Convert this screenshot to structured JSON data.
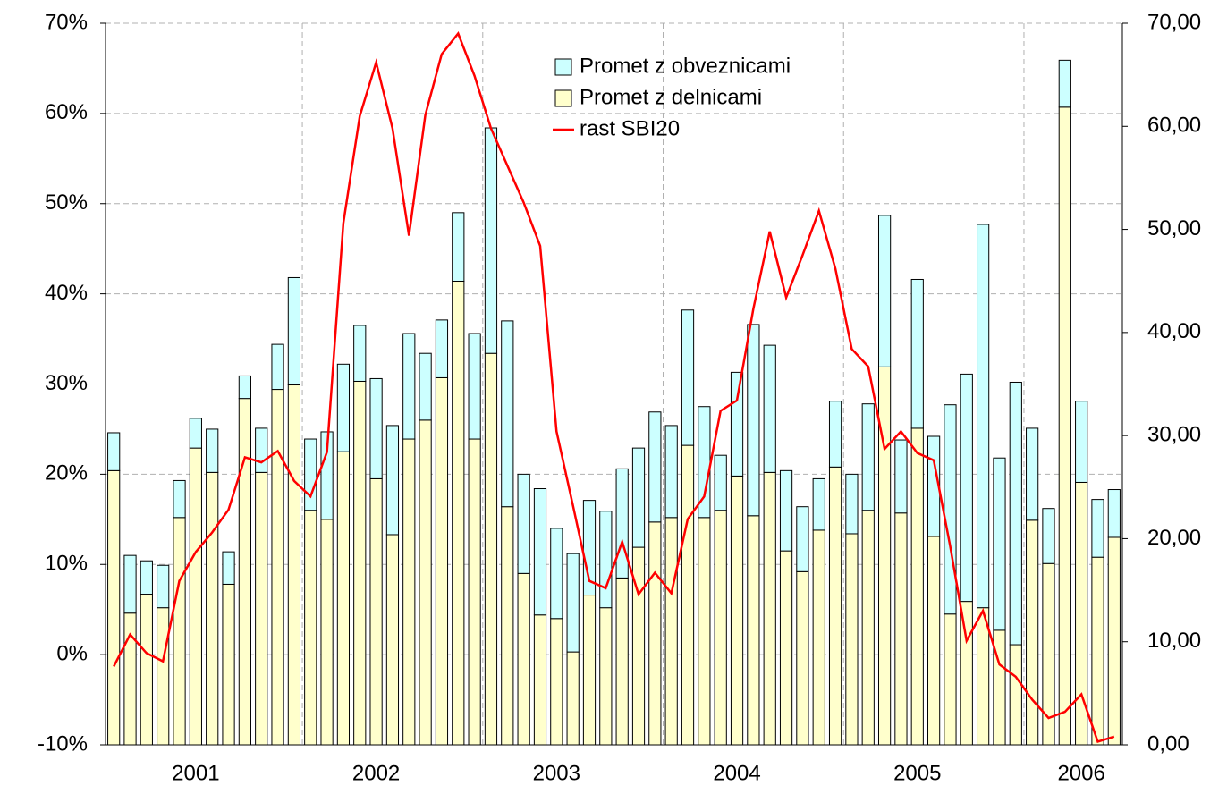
{
  "chart_data": {
    "type": "bar-line",
    "categories": [
      null,
      null,
      null,
      null,
      null,
      "2001",
      null,
      null,
      null,
      null,
      null,
      null,
      null,
      null,
      null,
      null,
      "2002",
      null,
      null,
      null,
      null,
      null,
      null,
      null,
      null,
      null,
      null,
      "2003",
      null,
      null,
      null,
      null,
      null,
      null,
      null,
      null,
      null,
      null,
      "2004",
      null,
      null,
      null,
      null,
      null,
      null,
      null,
      null,
      null,
      null,
      "2005",
      null,
      null,
      null,
      null,
      null,
      null,
      null,
      null,
      null,
      "2006",
      null,
      null
    ],
    "series": [
      {
        "name": "Promet z delnicami",
        "color": "#ffffcc",
        "stack": "a",
        "values": [
          20.4,
          4.6,
          6.7,
          5.2,
          15.2,
          22.9,
          20.2,
          7.8,
          28.4,
          20.2,
          29.4,
          29.9,
          16.0,
          15.0,
          22.5,
          30.3,
          19.5,
          13.3,
          23.9,
          26.0,
          30.7,
          41.4,
          23.9,
          33.4,
          16.4,
          9.0,
          4.4,
          4.0,
          0.3,
          6.6,
          5.2,
          8.5,
          11.9,
          14.7,
          15.2,
          23.2,
          15.2,
          16.0,
          19.8,
          15.4,
          20.2,
          11.5,
          9.2,
          13.8,
          20.8,
          13.4,
          16.0,
          31.9,
          15.7,
          25.1,
          13.1,
          4.5,
          5.9,
          5.2,
          2.7,
          1.1,
          14.9,
          10.1,
          60.7,
          19.1,
          10.8,
          13.0
        ]
      },
      {
        "name": "Promet z obveznicami",
        "color": "#ccffff",
        "stack": "a",
        "values": [
          4.2,
          6.4,
          3.7,
          4.7,
          4.1,
          3.3,
          4.8,
          3.6,
          2.5,
          4.9,
          5.0,
          11.9,
          7.9,
          9.7,
          9.7,
          6.2,
          11.1,
          12.1,
          11.7,
          7.4,
          6.4,
          7.6,
          11.7,
          25.0,
          20.6,
          11.0,
          14.0,
          10.0,
          10.9,
          10.5,
          10.7,
          12.1,
          11.0,
          12.2,
          10.2,
          15.0,
          12.3,
          6.1,
          11.5,
          21.2,
          14.1,
          8.9,
          7.2,
          5.7,
          7.3,
          6.6,
          11.8,
          16.8,
          8.1,
          16.5,
          11.1,
          23.2,
          25.2,
          42.5,
          19.1,
          29.1,
          10.2,
          6.1,
          5.2,
          9.0,
          6.4,
          5.3
        ]
      },
      {
        "name": "rast SBI20",
        "color": "#ff0000",
        "axis": "y2",
        "values": [
          7.6,
          10.7,
          8.9,
          8.1,
          15.9,
          18.7,
          20.6,
          22.8,
          27.9,
          27.4,
          28.5,
          25.6,
          24.1,
          28.4,
          50.6,
          61.0,
          66.2,
          59.8,
          49.4,
          61.1,
          67.0,
          69.0,
          64.9,
          59.8,
          56.2,
          52.6,
          48.4,
          30.4,
          23.2,
          15.9,
          15.2,
          19.7,
          14.6,
          16.7,
          14.7,
          21.9,
          24.1,
          32.4,
          33.4,
          42.3,
          49.8,
          43.4,
          47.5,
          51.8,
          46.2,
          38.4,
          36.7,
          28.7,
          30.4,
          28.3,
          27.6,
          19.3,
          10.1,
          13.0,
          7.8,
          6.6,
          4.4,
          2.6,
          3.2,
          4.9,
          0.3,
          0.8
        ]
      }
    ],
    "ylim": [
      -10,
      70
    ],
    "yticks": [
      {
        "value": -10,
        "label": "-10%"
      },
      {
        "value": 0,
        "label": "0%"
      },
      {
        "value": 10,
        "label": "10%"
      },
      {
        "value": 20,
        "label": "20%"
      },
      {
        "value": 30,
        "label": "30%"
      },
      {
        "value": 40,
        "label": "40%"
      },
      {
        "value": 50,
        "label": "50%"
      },
      {
        "value": 60,
        "label": "60%"
      },
      {
        "value": 70,
        "label": "70%"
      }
    ],
    "y2lim": [
      0,
      70
    ],
    "y2ticks": [
      {
        "value": 0,
        "label": "0,00"
      },
      {
        "value": 10,
        "label": "10,00"
      },
      {
        "value": 20,
        "label": "20,00"
      },
      {
        "value": 30,
        "label": "30,00"
      },
      {
        "value": 40,
        "label": "40,00"
      },
      {
        "value": 50,
        "label": "50,00"
      },
      {
        "value": 60,
        "label": "60,00"
      },
      {
        "value": 70,
        "label": "70,00"
      }
    ],
    "grid": true,
    "legend": "top"
  }
}
